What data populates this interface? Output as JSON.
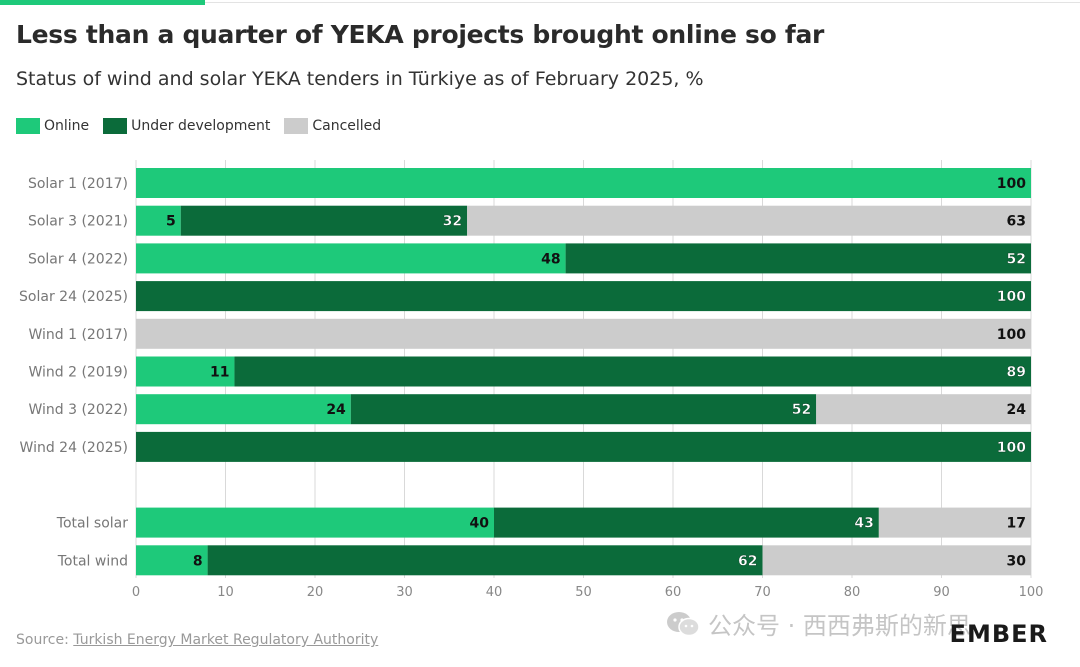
{
  "title": "Less than a quarter of YEKA projects brought online so far",
  "subtitle": "Status of wind and solar YEKA tenders in Türkiye as of February 2025, %",
  "source": {
    "prefix": "Source: ",
    "link": "Turkish Energy Market Regulatory Authority"
  },
  "logo": "EMBER",
  "watermark": "公众号 · 西西弗斯的新思",
  "colors": {
    "online": "#1ec97a",
    "under_development": "#0b6b3a",
    "cancelled": "#cccccc",
    "grid": "#d9d9d9",
    "axis_text": "#888888",
    "label_text": "#777777"
  },
  "chart_data": {
    "type": "bar",
    "orientation": "horizontal",
    "stacked": true,
    "title": "Less than a quarter of YEKA projects brought online so far",
    "subtitle": "Status of wind and solar YEKA tenders in Türkiye as of February 2025, %",
    "xlabel": "",
    "ylabel": "",
    "xlim": [
      0,
      100
    ],
    "xticks": [
      "0",
      "10",
      "20",
      "30",
      "40",
      "50",
      "60",
      "70",
      "80",
      "90",
      "100"
    ],
    "grid": true,
    "legend_position": "top-left",
    "categories": [
      "Solar 1 (2017)",
      "Solar 3 (2021)",
      "Solar 4 (2022)",
      "Solar 24 (2025)",
      "Wind 1 (2017)",
      "Wind 2 (2019)",
      "Wind 3 (2022)",
      "Wind 24 (2025)",
      "Total solar",
      "Total wind"
    ],
    "group_gap_after": 7,
    "series": [
      {
        "name": "Online",
        "key": "online",
        "values": [
          100,
          5,
          48,
          0,
          0,
          11,
          24,
          0,
          40,
          8
        ]
      },
      {
        "name": "Under development",
        "key": "under_development",
        "values": [
          0,
          32,
          52,
          100,
          0,
          89,
          52,
          100,
          43,
          62
        ]
      },
      {
        "name": "Cancelled",
        "key": "cancelled",
        "values": [
          0,
          63,
          0,
          0,
          100,
          0,
          24,
          0,
          17,
          30
        ]
      }
    ]
  }
}
